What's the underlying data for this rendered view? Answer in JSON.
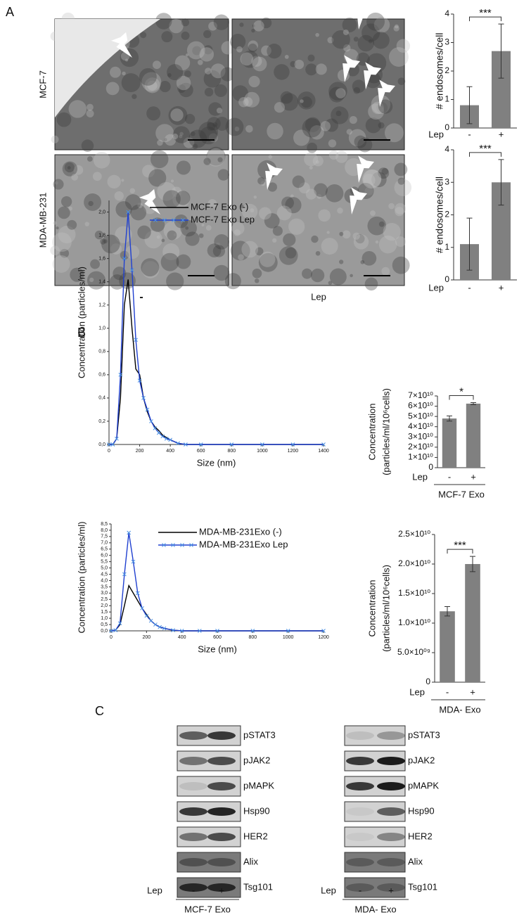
{
  "panel_labels": [
    "A",
    "B",
    "C"
  ],
  "micrographs": {
    "rows": [
      "MCF-7",
      "MDA-MB-231"
    ],
    "columns": [
      "-",
      "Lep"
    ]
  },
  "chart_data": [
    {
      "type": "bar",
      "y_label": "# endosomes/cell",
      "x_label": "Lep",
      "categories": [
        "-",
        "+"
      ],
      "values": [
        0.8,
        2.7
      ],
      "errors": [
        0.65,
        0.95
      ],
      "color": "#808080",
      "ylim": [
        0,
        4
      ],
      "yticks": [
        0,
        1,
        2,
        3,
        4
      ],
      "significance": "***"
    },
    {
      "type": "bar",
      "y_label": "# endosomes/cell",
      "x_label": "Lep",
      "categories": [
        "-",
        "+"
      ],
      "values": [
        1.1,
        3.0
      ],
      "errors": [
        0.8,
        0.7
      ],
      "color": "#808080",
      "ylim": [
        0,
        4
      ],
      "yticks": [
        0,
        1,
        2,
        3,
        4
      ],
      "significance": "***"
    },
    {
      "type": "line",
      "x_label": "Size (nm)",
      "y_label": "Concentration  (particles/ml)",
      "x": [
        0,
        25,
        50,
        75,
        100,
        125,
        150,
        175,
        200,
        225,
        250,
        275,
        300,
        325,
        350,
        375,
        400,
        450,
        500,
        600,
        800,
        1000,
        1200,
        1400
      ],
      "series": [
        {
          "name": "MCF-7 Exo (-)",
          "color": "#000000",
          "values": [
            0,
            0,
            0.05,
            0.4,
            1.2,
            1.42,
            1.0,
            0.65,
            0.6,
            0.4,
            0.28,
            0.2,
            0.15,
            0.12,
            0.08,
            0.06,
            0.04,
            0.01,
            0,
            0,
            0,
            0,
            0,
            0
          ]
        },
        {
          "name": "MCF-7 Exo Lep",
          "color": "#2040d0",
          "marker": "x",
          "values": [
            0,
            0,
            0.05,
            0.6,
            1.6,
            2.0,
            1.5,
            0.9,
            0.55,
            0.4,
            0.3,
            0.2,
            0.14,
            0.1,
            0.07,
            0.05,
            0.04,
            0.01,
            0,
            0,
            0,
            0,
            0,
            0
          ]
        }
      ],
      "xlim": [
        0,
        1400
      ],
      "xticks": [
        0,
        200,
        400,
        600,
        800,
        1000,
        1200,
        1400
      ],
      "ylim": [
        0,
        2.1
      ],
      "yticks": [
        {
          "value": 0,
          "label": "0,0"
        },
        {
          "value": 0.2,
          "label": "0,2"
        },
        {
          "value": 0.4,
          "label": "0,4"
        },
        {
          "value": 0.6,
          "label": "0,6"
        },
        {
          "value": 0.8,
          "label": "0,8"
        },
        {
          "value": 1.0,
          "label": "1,0"
        },
        {
          "value": 1.2,
          "label": "1,2"
        },
        {
          "value": 1.4,
          "label": "1,4"
        },
        {
          "value": 1.6,
          "label": "1,6"
        },
        {
          "value": 1.8,
          "label": "1,8"
        },
        {
          "value": 2.0,
          "label": "2,0"
        }
      ]
    },
    {
      "type": "bar",
      "y_label": [
        "Concentration",
        "(particles/ml/10⁶cells)"
      ],
      "x_label": "Lep",
      "group_label": "MCF-7 Exo",
      "categories": [
        "-",
        "+"
      ],
      "values": [
        48000000000,
        62500000000
      ],
      "errors": [
        2500000000,
        1000000000
      ],
      "color": "#808080",
      "ylim": [
        0,
        70000000000
      ],
      "yticks": [
        {
          "value": 0,
          "label": "0"
        },
        {
          "value": 10000000000,
          "label": "1×10¹⁰"
        },
        {
          "value": 20000000000,
          "label": "2×10¹⁰"
        },
        {
          "value": 30000000000,
          "label": "3×10¹⁰"
        },
        {
          "value": 40000000000,
          "label": "4×10¹⁰"
        },
        {
          "value": 50000000000,
          "label": "5×10¹⁰"
        },
        {
          "value": 60000000000,
          "label": "6×10¹⁰"
        },
        {
          "value": 70000000000,
          "label": "7×10¹⁰"
        }
      ],
      "significance": "*"
    },
    {
      "type": "line",
      "x_label": "Size (nm)",
      "y_label": "Concentration  (particles/ml)",
      "x": [
        0,
        25,
        50,
        75,
        100,
        125,
        150,
        175,
        200,
        225,
        250,
        275,
        300,
        350,
        400,
        500,
        600,
        800,
        1000,
        1200
      ],
      "series": [
        {
          "name": "MDA-MB-231Exo  (-)",
          "color": "#000000",
          "values": [
            0,
            0.05,
            0.5,
            2.0,
            3.6,
            3.0,
            2.4,
            1.8,
            1.3,
            0.8,
            0.5,
            0.3,
            0.2,
            0.05,
            0,
            0,
            0,
            0,
            0,
            0
          ]
        },
        {
          "name": "MDA-MB-231Exo  Lep",
          "color": "#2040d0",
          "marker": "x",
          "values": [
            0,
            0.05,
            0.6,
            4.5,
            7.8,
            5.5,
            3.0,
            1.8,
            1.2,
            0.8,
            0.5,
            0.3,
            0.2,
            0.05,
            0,
            0,
            0,
            0,
            0,
            0
          ]
        }
      ],
      "xlim": [
        0,
        1200
      ],
      "xticks": [
        0,
        200,
        400,
        600,
        800,
        1000,
        1200
      ],
      "ylim": [
        0,
        8.5
      ],
      "yticks": [
        {
          "value": 0,
          "label": "0,0"
        },
        {
          "value": 0.5,
          "label": "0,5"
        },
        {
          "value": 1.0,
          "label": "1,0"
        },
        {
          "value": 1.5,
          "label": "1,5"
        },
        {
          "value": 2.0,
          "label": "2,0"
        },
        {
          "value": 2.5,
          "label": "2,5"
        },
        {
          "value": 3.0,
          "label": "3,0"
        },
        {
          "value": 3.5,
          "label": "3,5"
        },
        {
          "value": 4.0,
          "label": "4,0"
        },
        {
          "value": 4.5,
          "label": "4,5"
        },
        {
          "value": 5.0,
          "label": "5,0"
        },
        {
          "value": 5.5,
          "label": "5,5"
        },
        {
          "value": 6.0,
          "label": "6,0"
        },
        {
          "value": 6.5,
          "label": "6,5"
        },
        {
          "value": 7.0,
          "label": "7,0"
        },
        {
          "value": 7.5,
          "label": "7,5"
        },
        {
          "value": 8.0,
          "label": "8,0"
        },
        {
          "value": 8.5,
          "label": "8,5"
        }
      ]
    },
    {
      "type": "bar",
      "y_label": [
        "Concentration",
        "(particles/ml/10⁶cells)"
      ],
      "x_label": "Lep",
      "group_label": "MDA- Exo",
      "categories": [
        "-",
        "+"
      ],
      "values": [
        12000000000,
        20000000000
      ],
      "errors": [
        800000000,
        1300000000
      ],
      "color": "#808080",
      "ylim": [
        0,
        25000000000
      ],
      "yticks": [
        {
          "value": 0,
          "label": "0"
        },
        {
          "value": 5000000000,
          "label": "5.0×10⁰⁹"
        },
        {
          "value": 10000000000,
          "label": "1.0×10¹⁰"
        },
        {
          "value": 15000000000,
          "label": "1.5×10¹⁰"
        },
        {
          "value": 20000000000,
          "label": "2.0×10¹⁰"
        },
        {
          "value": 25000000000,
          "label": "2.5×10¹⁰"
        }
      ],
      "significance": "***"
    }
  ],
  "blots": [
    {
      "proteins": [
        "pSTAT3",
        "pJAK2",
        "pMAPK",
        "Hsp90",
        "HER2",
        "Alix",
        "Tsg101"
      ],
      "treatment_label": "Lep",
      "lanes": [
        "-",
        "+"
      ],
      "group": "MCF-7 Exo"
    },
    {
      "proteins": [
        "pSTAT3",
        "pJAK2",
        "pMAPK",
        "Hsp90",
        "HER2",
        "Alix",
        "Tsg101"
      ],
      "treatment_label": "Lep",
      "lanes": [
        "-",
        "+"
      ],
      "group": "MDA- Exo"
    }
  ]
}
